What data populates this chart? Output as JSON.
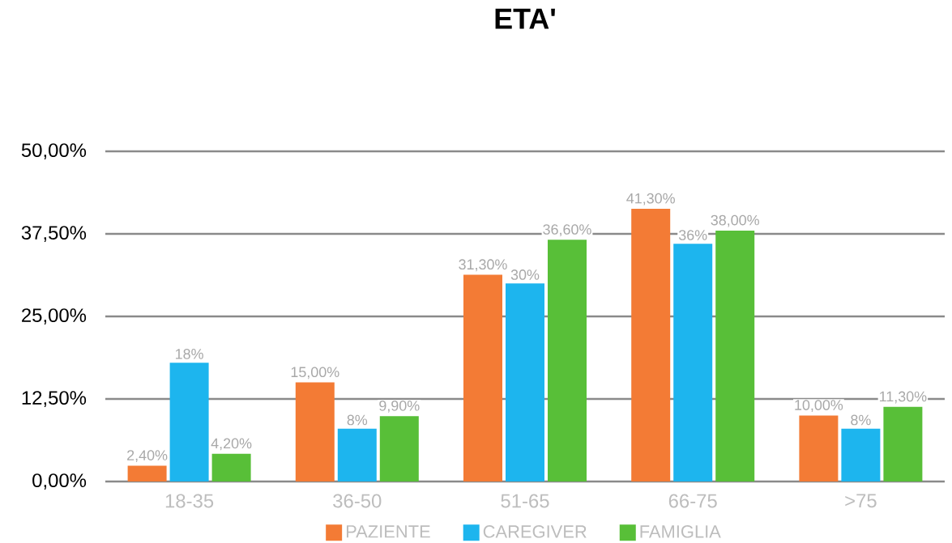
{
  "chart_data": {
    "type": "bar",
    "title": "ETA'",
    "categories": [
      "18-35",
      "36-50",
      "51-65",
      "66-75",
      ">75"
    ],
    "series": [
      {
        "name": "PAZIENTE",
        "color": "#f37b35",
        "values": [
          2.4,
          15,
          31.3,
          41.3,
          10
        ],
        "value_labels": [
          "2,40%",
          "15,00%",
          "31,30%",
          "41,30%",
          "10,00%"
        ]
      },
      {
        "name": "CAREGIVER",
        "color": "#1db5ee",
        "values": [
          18,
          8,
          30,
          36,
          8
        ],
        "value_labels": [
          "18%",
          "8%",
          "30%",
          "36%",
          "8%"
        ]
      },
      {
        "name": "FAMIGLIA",
        "color": "#58bf38",
        "values": [
          4.2,
          9.9,
          36.6,
          38,
          11.3
        ],
        "value_labels": [
          "4,20%",
          "9,90%",
          "36,60%",
          "38,00%",
          "11,30%"
        ]
      }
    ],
    "ylim": [
      0,
      50
    ],
    "yticks": [
      {
        "value": 0,
        "label": "0,00%"
      },
      {
        "value": 12.5,
        "label": "12,50%"
      },
      {
        "value": 25,
        "label": "25,00%"
      },
      {
        "value": 37.5,
        "label": "37,50%"
      },
      {
        "value": 50,
        "label": "50,00%"
      }
    ],
    "grid": "y",
    "legend": "bottom"
  }
}
